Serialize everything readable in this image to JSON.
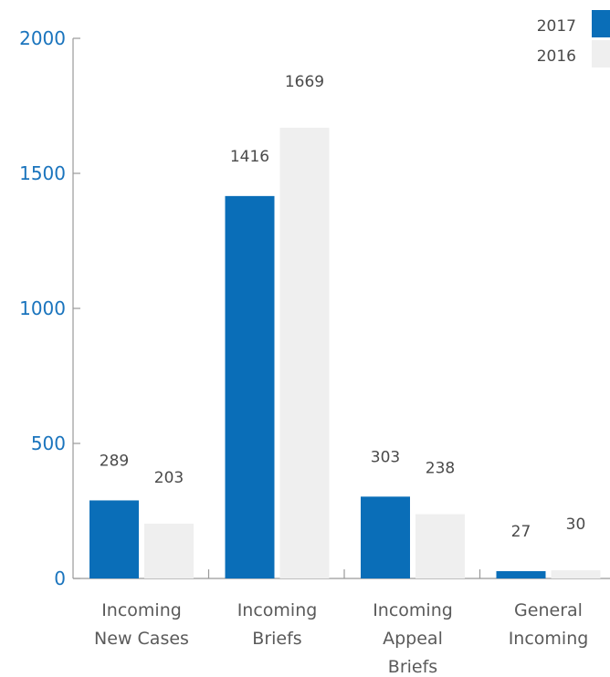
{
  "colors": {
    "series_2017": "#0a6eb8",
    "series_2016": "#efefef",
    "axis": "#999999",
    "tick_text": "#1a74bd"
  },
  "chart_data": {
    "type": "bar",
    "categories": [
      [
        "Incoming",
        "New Cases"
      ],
      [
        "Incoming",
        "Briefs"
      ],
      [
        "Incoming",
        "Appeal",
        "Briefs"
      ],
      [
        "General",
        "Incoming"
      ]
    ],
    "series": [
      {
        "name": "2017",
        "values": [
          289,
          1416,
          303,
          27
        ]
      },
      {
        "name": "2016",
        "values": [
          203,
          1669,
          238,
          30
        ]
      }
    ],
    "ylim": [
      0,
      2000
    ],
    "yticks": [
      "0",
      "500",
      "1000",
      "1500",
      "2000"
    ],
    "data_labels": true,
    "grid": false,
    "legend_position": "top-right"
  }
}
